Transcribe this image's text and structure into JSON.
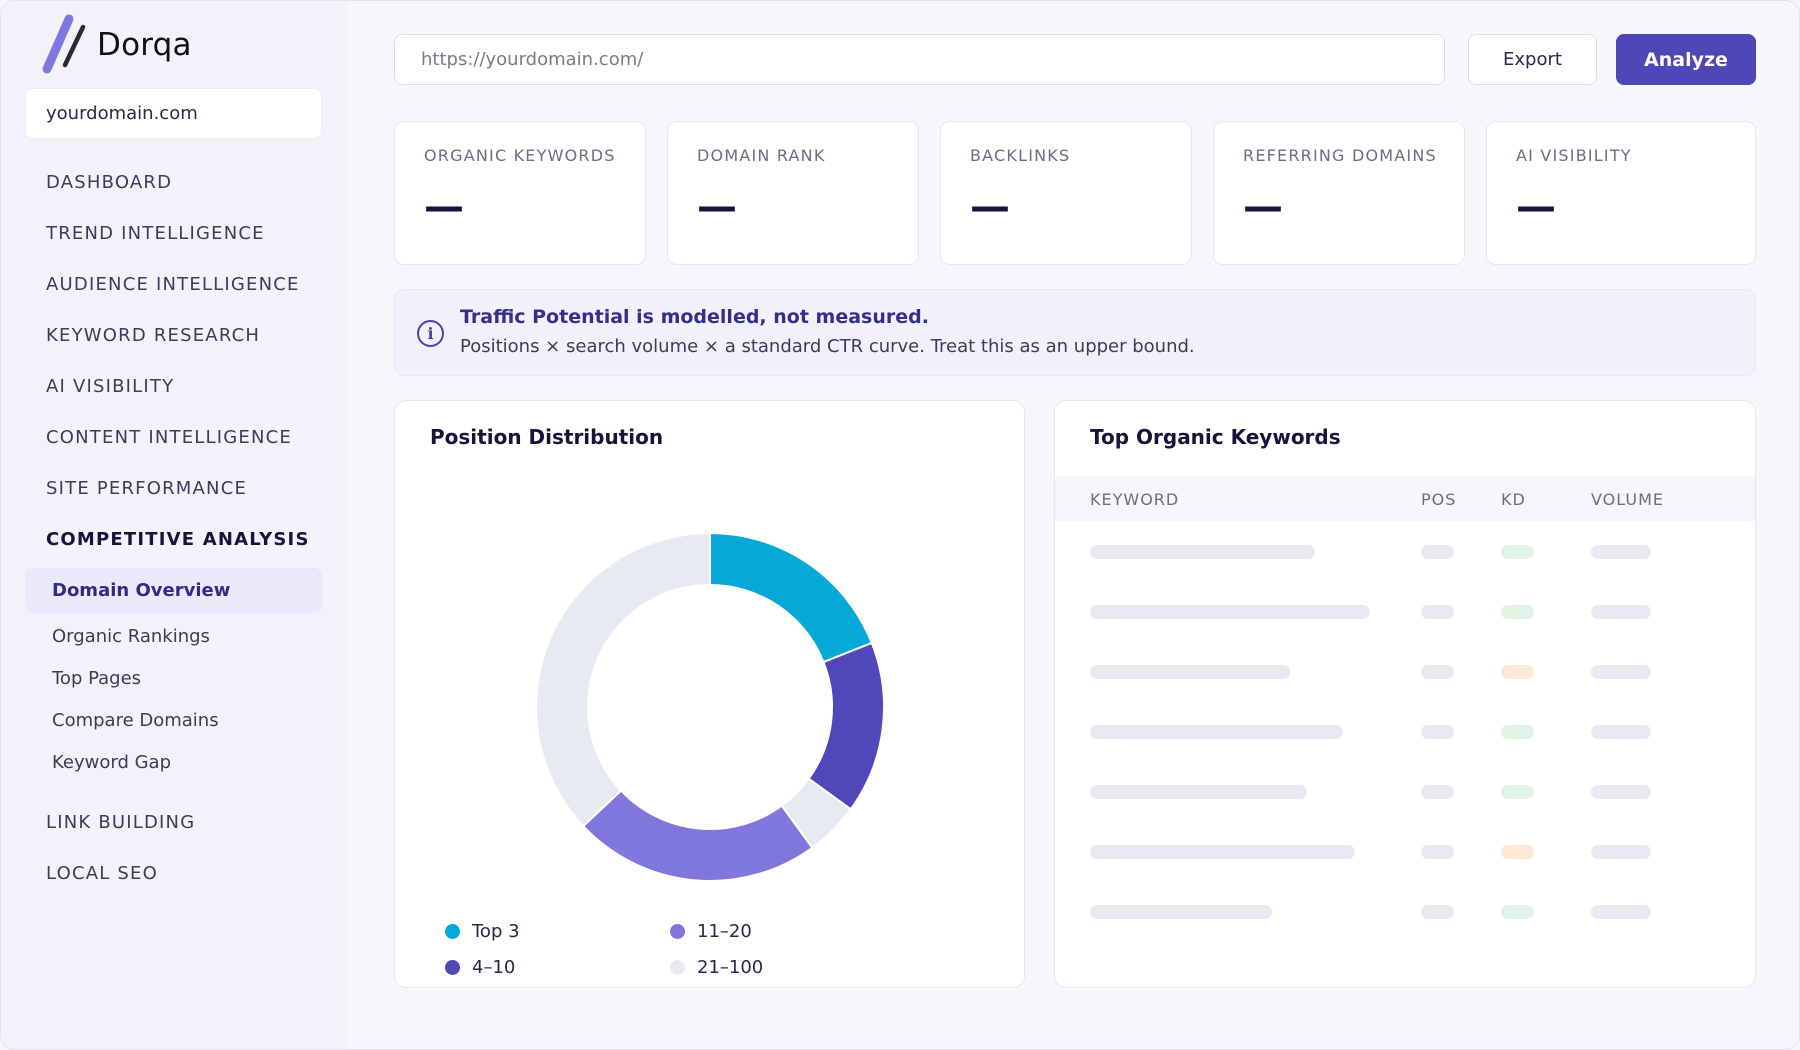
{
  "app": {
    "name": "Dorqa",
    "current_domain": "yourdomain.com",
    "colors": {
      "accent": "#4f46b8",
      "logo_light": "#7f78dd",
      "logo_dark": "#2b2a33"
    }
  },
  "sidebar": {
    "nav": [
      {
        "label": "DASHBOARD"
      },
      {
        "label": "TREND INTELLIGENCE"
      },
      {
        "label": "AUDIENCE INTELLIGENCE"
      },
      {
        "label": "KEYWORD RESEARCH"
      },
      {
        "label": "AI VISIBILITY"
      },
      {
        "label": "CONTENT INTELLIGENCE"
      },
      {
        "label": "SITE PERFORMANCE"
      },
      {
        "label": "COMPETITIVE ANALYSIS",
        "active": true
      },
      {
        "label": "LINK BUILDING"
      },
      {
        "label": "LOCAL SEO"
      }
    ],
    "sub_nav": [
      {
        "label": "Domain Overview",
        "active": true
      },
      {
        "label": "Organic Rankings"
      },
      {
        "label": "Top Pages"
      },
      {
        "label": "Compare Domains"
      },
      {
        "label": "Keyword Gap"
      }
    ]
  },
  "toolbar": {
    "url_placeholder": "https://yourdomain.com/",
    "export_label": "Export",
    "analyze_label": "Analyze"
  },
  "stats": [
    {
      "label": "ORGANIC KEYWORDS",
      "value": "—"
    },
    {
      "label": "DOMAIN RANK",
      "value": "—"
    },
    {
      "label": "BACKLINKS",
      "value": "—"
    },
    {
      "label": "REFERRING DOMAINS",
      "value": "—"
    },
    {
      "label": "AI VISIBILITY",
      "value": "—"
    }
  ],
  "banner": {
    "icon": "info-icon",
    "title": "Traffic Potential is modelled, not measured.",
    "text": "Positions × search volume × a standard CTR curve. Treat this as an upper bound."
  },
  "position_distribution": {
    "title": "Position Distribution",
    "chart_data": {
      "type": "pie",
      "donut": true,
      "slices": [
        {
          "label": "Top 3",
          "value": 19,
          "color": "#06a8d8"
        },
        {
          "label": "4–10",
          "value": 16,
          "color": "#5048b8"
        },
        {
          "label": "",
          "value": 5,
          "color": "#e8eaf1"
        },
        {
          "label": "11–20",
          "value": 23,
          "color": "#8077dd"
        },
        {
          "label": "21–100",
          "value": 37,
          "color": "#e8eaf1"
        }
      ],
      "legend": [
        {
          "label": "Top 3",
          "color": "#06a8d8"
        },
        {
          "label": "11–20",
          "color": "#8077dd"
        },
        {
          "label": "4–10",
          "color": "#5048b8"
        },
        {
          "label": "21–100",
          "color": "#e8eaf1"
        }
      ],
      "legend_position": "bottom"
    }
  },
  "top_keywords": {
    "title": "Top Organic Keywords",
    "columns": [
      "KEYWORD",
      "POS",
      "KD",
      "VOLUME"
    ],
    "loading_rows": [
      {
        "kd_status": "green"
      },
      {
        "kd_status": "green"
      },
      {
        "kd_status": "orange"
      },
      {
        "kd_status": "green"
      },
      {
        "kd_status": "green"
      },
      {
        "kd_status": "orange"
      },
      {
        "kd_status": "green"
      }
    ]
  }
}
